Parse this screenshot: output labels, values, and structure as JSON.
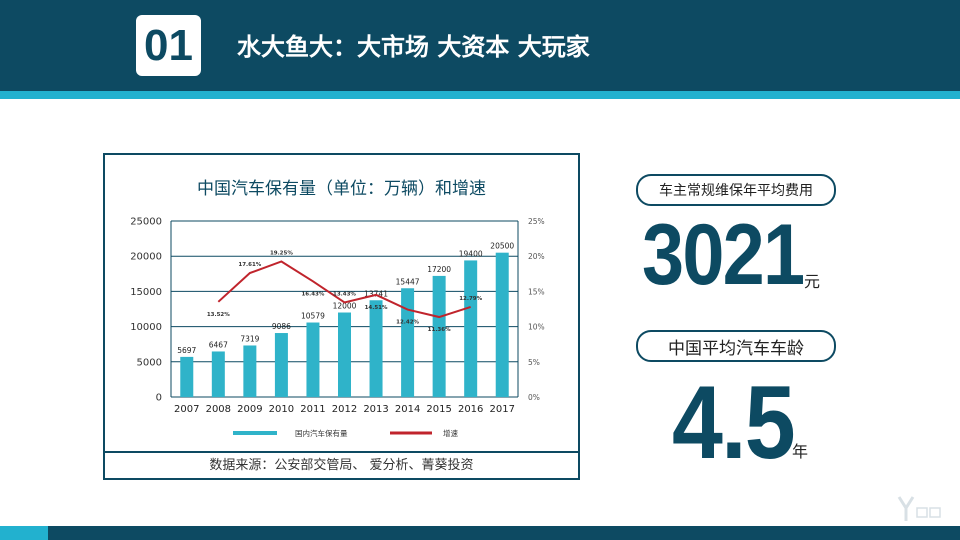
{
  "header": {
    "number": "01",
    "title": "水大鱼大：大市场 大资本 大玩家"
  },
  "colors": {
    "primary": "#0d4a62",
    "accent": "#22b1cf",
    "bar": "#2fb3c9",
    "line": "#c0242c"
  },
  "chart_data": {
    "type": "bar",
    "title": "中国汽车保有量（单位：万辆）和增速",
    "categories": [
      "2007",
      "2008",
      "2009",
      "2010",
      "2011",
      "2012",
      "2013",
      "2014",
      "2015",
      "2016",
      "2017"
    ],
    "series": [
      {
        "name": "国内汽车保有量",
        "type": "bar",
        "values": [
          5697,
          6467,
          7319,
          9086,
          10579,
          12000,
          13741,
          15447,
          17200,
          19400,
          20500
        ],
        "labels": [
          "5697",
          "6467",
          "7319",
          "9086",
          "10579",
          "12000",
          "13741",
          "15447",
          "17200",
          "19400",
          "20500"
        ]
      },
      {
        "name": "增速",
        "type": "line",
        "values": [
          null,
          13.52,
          17.61,
          19.25,
          16.43,
          13.43,
          14.51,
          12.42,
          11.36,
          12.79,
          null
        ],
        "labels": [
          "",
          "13.52%",
          "17.61%",
          "19.25%",
          "16.43%",
          "13.43%",
          "14.51%",
          "12.42%",
          "11.36%",
          "12.79%",
          ""
        ]
      }
    ],
    "y_left": {
      "ticks": [
        "0",
        "5000",
        "10000",
        "15000",
        "20000",
        "25000"
      ],
      "ylim": [
        0,
        25000
      ]
    },
    "y_right": {
      "ticks": [
        "0%",
        "5%",
        "10%",
        "15%",
        "20%",
        "25%"
      ],
      "ylim": [
        0,
        25
      ]
    },
    "grid": true,
    "legend": "bottom"
  },
  "source": "数据来源：公安部交管局、 爱分析、菁葵投资",
  "stat1": {
    "label": "车主常规维保年平均费用",
    "value": "3021",
    "unit": "元"
  },
  "stat2": {
    "label": "中国平均汽车车龄",
    "value": "4.5",
    "unit": "年"
  }
}
